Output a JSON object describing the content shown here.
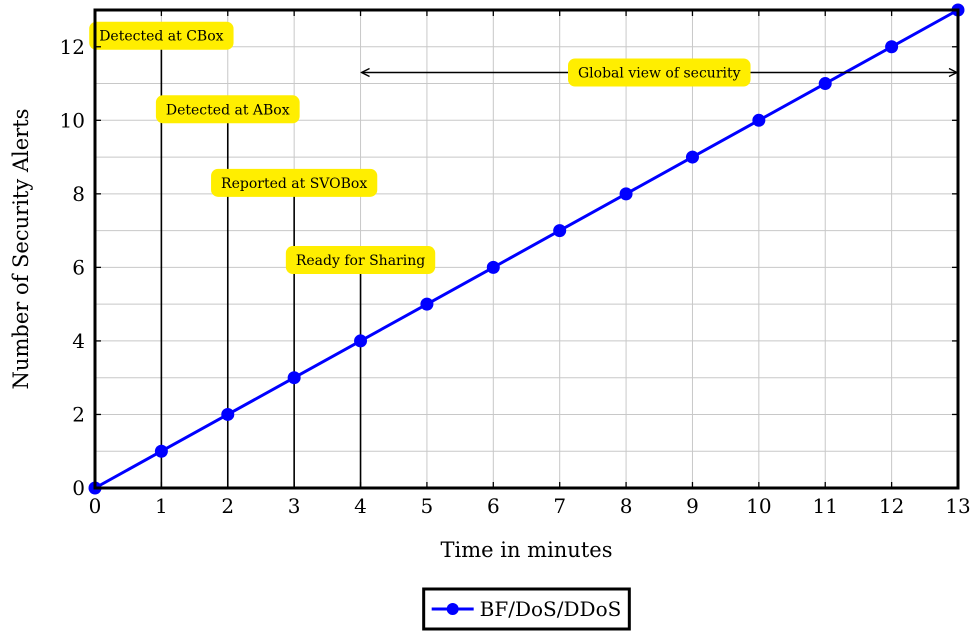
{
  "chart_data": {
    "type": "line",
    "title": "",
    "xlabel": "Time in minutes",
    "ylabel": "Number of Security Alerts",
    "xlim": [
      0,
      13
    ],
    "ylim": [
      0,
      13
    ],
    "x_ticks": [
      "0",
      "1",
      "2",
      "3",
      "4",
      "5",
      "6",
      "7",
      "8",
      "9",
      "10",
      "11",
      "12",
      "13"
    ],
    "y_ticks": [
      "0",
      "2",
      "4",
      "6",
      "8",
      "10",
      "12"
    ],
    "grid": true,
    "legend_position": "bottom-center",
    "series": [
      {
        "name": "BF/DoS/DDoS",
        "color": "#0000ff",
        "marker": "circle",
        "x": [
          0,
          1,
          2,
          3,
          4,
          5,
          6,
          7,
          8,
          9,
          10,
          11,
          12,
          13
        ],
        "y": [
          0,
          1,
          2,
          3,
          4,
          5,
          6,
          7,
          8,
          9,
          10,
          11,
          12,
          13
        ]
      }
    ],
    "annotations": [
      {
        "text": "Detected at CBox",
        "x": 1,
        "y": 12.3
      },
      {
        "text": "Detected at ABox",
        "x": 2,
        "y": 10.3
      },
      {
        "text": "Reported at SVOBox",
        "x": 3,
        "y": 8.3
      },
      {
        "text": "Ready for Sharing",
        "x": 4,
        "y": 6.2
      }
    ],
    "span_annotation": {
      "text": "Global view of security",
      "x_start": 4,
      "x_end": 13,
      "y": 11.3
    },
    "annotation_color": "#ffee00"
  }
}
